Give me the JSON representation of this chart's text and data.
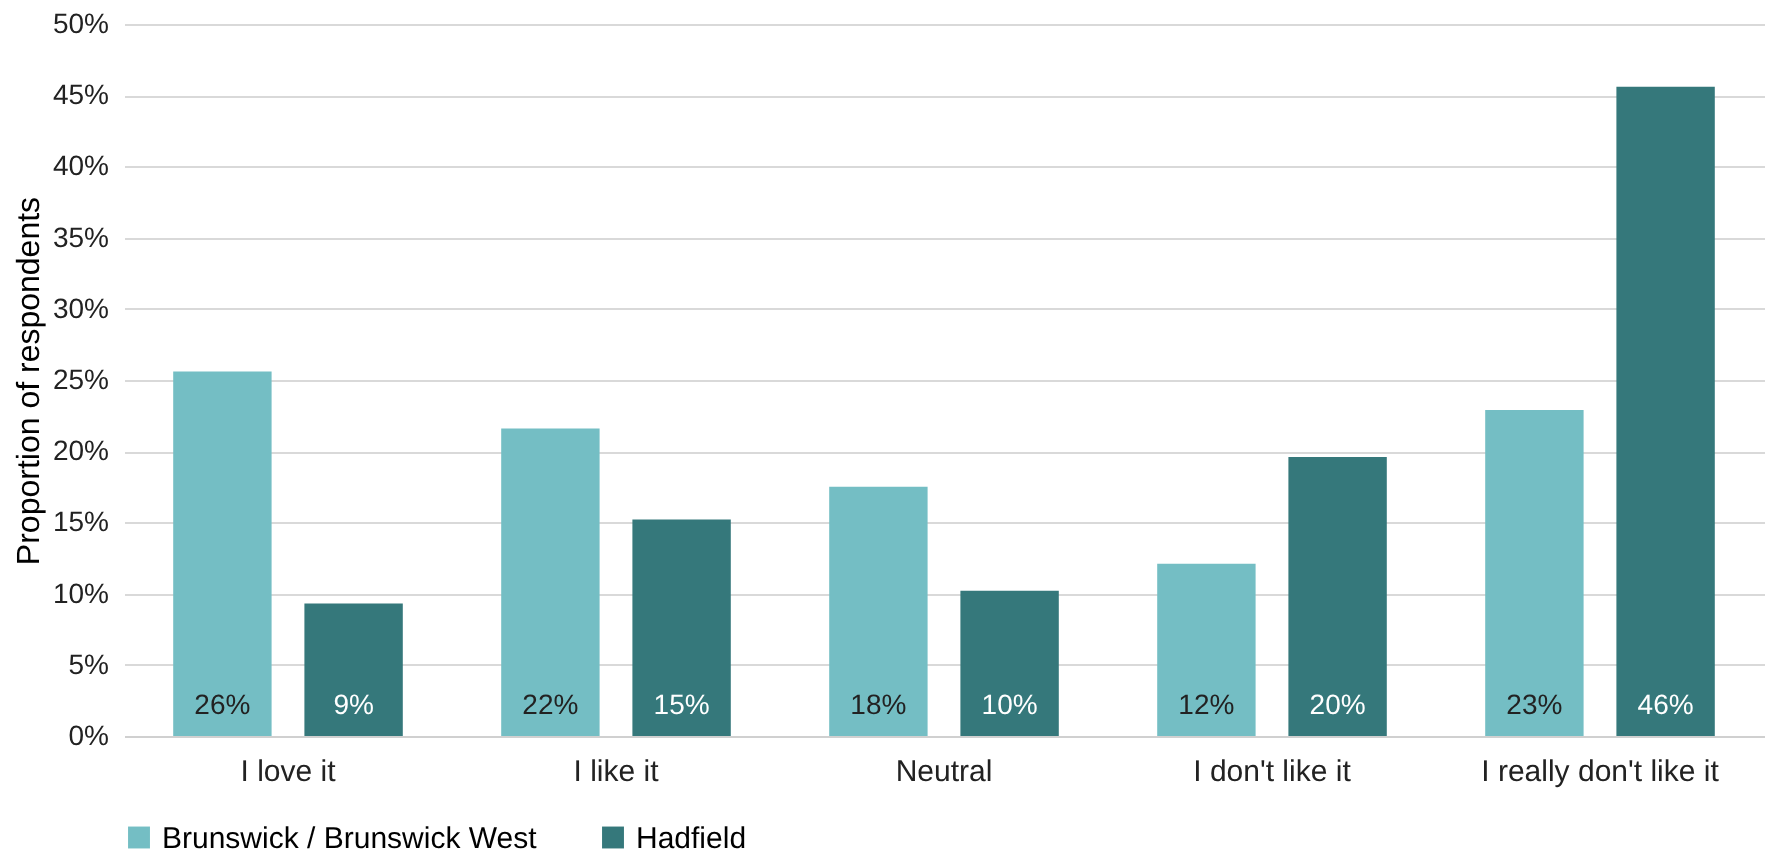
{
  "chart_data": {
    "type": "bar",
    "ylabel": "Proportion of respondents",
    "categories": [
      "I love it",
      "I like it",
      "Neutral",
      "I don't like it",
      "I really don't like it"
    ],
    "series": [
      {
        "name": "Brunswick / Brunswick West",
        "color": "#74bec4",
        "values": [
          25.6,
          21.6,
          17.5,
          12.1,
          22.9
        ],
        "value_labels": [
          "26%",
          "22%",
          "18%",
          "12%",
          "23%"
        ]
      },
      {
        "name": "Hadfield",
        "color": "#35787b",
        "values": [
          9.3,
          15.2,
          10.2,
          19.6,
          45.6
        ],
        "value_labels": [
          "9%",
          "15%",
          "10%",
          "20%",
          "46%"
        ]
      }
    ],
    "ylim": [
      0,
      50
    ],
    "yticks": [
      {
        "value": 0,
        "label": "0%"
      },
      {
        "value": 5,
        "label": "5%"
      },
      {
        "value": 10,
        "label": "10%"
      },
      {
        "value": 15,
        "label": "15%"
      },
      {
        "value": 20,
        "label": "20%"
      },
      {
        "value": 25,
        "label": "25%"
      },
      {
        "value": 30,
        "label": "30%"
      },
      {
        "value": 35,
        "label": "35%"
      },
      {
        "value": 40,
        "label": "40%"
      },
      {
        "value": 45,
        "label": "45%"
      },
      {
        "value": 50,
        "label": "50%"
      }
    ],
    "grid": "y",
    "legend": "bottom"
  }
}
